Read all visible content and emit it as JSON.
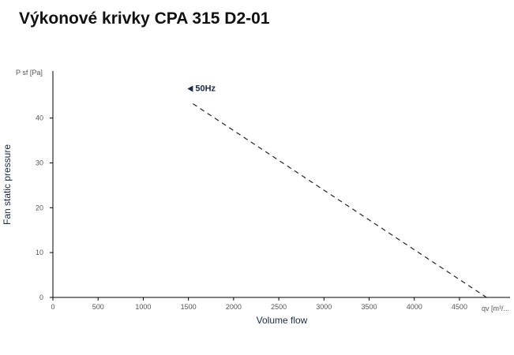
{
  "page": {
    "title": "Výkonové krivky CPA 315 D2-01"
  },
  "colors": {
    "axis": "#000000",
    "series": "#222222",
    "label": "#1a2a44"
  },
  "chart_data": {
    "type": "line",
    "title": "Výkonové krivky CPA 315 D2-01",
    "xlabel": "Volume flow",
    "ylabel": "Fan static pressure",
    "x_unit_label": "qv [m³/...",
    "y_unit_label": "P sf [Pa]",
    "xlim": [
      0,
      4850
    ],
    "ylim": [
      0,
      50.5
    ],
    "x_ticks": [
      0,
      500,
      1000,
      1500,
      2000,
      2500,
      3000,
      3500,
      4000,
      4500
    ],
    "y_ticks": [
      0,
      10,
      20,
      30,
      40
    ],
    "grid": false,
    "series": [
      {
        "name": "50Hz",
        "style": "dashed",
        "x": [
          1550,
          4800
        ],
        "y": [
          43.2,
          0
        ]
      }
    ]
  }
}
